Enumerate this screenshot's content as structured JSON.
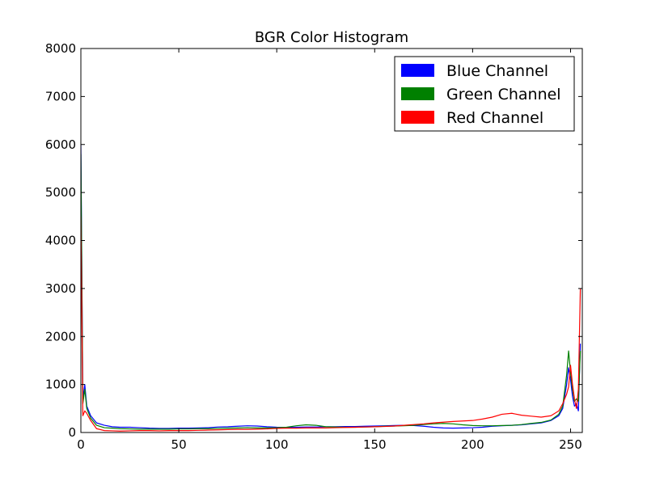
{
  "chart_data": {
    "type": "line",
    "title": "BGR Color Histogram",
    "xlabel": "",
    "ylabel": "",
    "xlim": [
      0,
      256
    ],
    "ylim": [
      0,
      8000
    ],
    "xticks": [
      0,
      50,
      100,
      150,
      200,
      250
    ],
    "yticks": [
      0,
      1000,
      2000,
      3000,
      4000,
      5000,
      6000,
      7000,
      8000
    ],
    "grid": false,
    "legend_position": "top-right",
    "series": [
      {
        "name": "Blue Channel",
        "color": "#0000ff",
        "points": [
          [
            0,
            6000
          ],
          [
            1,
            700
          ],
          [
            2,
            1000
          ],
          [
            3,
            550
          ],
          [
            5,
            350
          ],
          [
            8,
            200
          ],
          [
            12,
            150
          ],
          [
            16,
            120
          ],
          [
            20,
            110
          ],
          [
            25,
            110
          ],
          [
            30,
            100
          ],
          [
            35,
            90
          ],
          [
            40,
            85
          ],
          [
            45,
            85
          ],
          [
            50,
            90
          ],
          [
            55,
            90
          ],
          [
            60,
            95
          ],
          [
            65,
            100
          ],
          [
            70,
            115
          ],
          [
            75,
            120
          ],
          [
            80,
            130
          ],
          [
            85,
            140
          ],
          [
            90,
            135
          ],
          [
            95,
            120
          ],
          [
            100,
            110
          ],
          [
            105,
            105
          ],
          [
            110,
            110
          ],
          [
            115,
            115
          ],
          [
            120,
            115
          ],
          [
            125,
            120
          ],
          [
            130,
            120
          ],
          [
            135,
            125
          ],
          [
            140,
            125
          ],
          [
            145,
            130
          ],
          [
            150,
            135
          ],
          [
            155,
            140
          ],
          [
            160,
            145
          ],
          [
            165,
            150
          ],
          [
            170,
            145
          ],
          [
            175,
            130
          ],
          [
            180,
            110
          ],
          [
            185,
            95
          ],
          [
            190,
            90
          ],
          [
            195,
            95
          ],
          [
            200,
            100
          ],
          [
            205,
            110
          ],
          [
            210,
            130
          ],
          [
            215,
            140
          ],
          [
            220,
            150
          ],
          [
            225,
            160
          ],
          [
            230,
            180
          ],
          [
            235,
            200
          ],
          [
            240,
            250
          ],
          [
            244,
            350
          ],
          [
            246,
            500
          ],
          [
            248,
            1000
          ],
          [
            249,
            1350
          ],
          [
            250,
            1100
          ],
          [
            251,
            750
          ],
          [
            252,
            550
          ],
          [
            253,
            600
          ],
          [
            254,
            450
          ],
          [
            255,
            1850
          ]
        ]
      },
      {
        "name": "Green Channel",
        "color": "#008000",
        "points": [
          [
            0,
            5800
          ],
          [
            1,
            600
          ],
          [
            2,
            900
          ],
          [
            3,
            500
          ],
          [
            5,
            300
          ],
          [
            8,
            150
          ],
          [
            12,
            100
          ],
          [
            16,
            90
          ],
          [
            20,
            80
          ],
          [
            25,
            75
          ],
          [
            30,
            70
          ],
          [
            35,
            70
          ],
          [
            40,
            70
          ],
          [
            45,
            70
          ],
          [
            50,
            75
          ],
          [
            55,
            75
          ],
          [
            60,
            80
          ],
          [
            65,
            80
          ],
          [
            70,
            85
          ],
          [
            75,
            90
          ],
          [
            80,
            95
          ],
          [
            85,
            100
          ],
          [
            90,
            95
          ],
          [
            95,
            95
          ],
          [
            100,
            100
          ],
          [
            105,
            110
          ],
          [
            110,
            140
          ],
          [
            115,
            160
          ],
          [
            120,
            150
          ],
          [
            125,
            120
          ],
          [
            130,
            115
          ],
          [
            135,
            110
          ],
          [
            140,
            110
          ],
          [
            145,
            115
          ],
          [
            150,
            120
          ],
          [
            155,
            130
          ],
          [
            160,
            135
          ],
          [
            165,
            140
          ],
          [
            170,
            150
          ],
          [
            175,
            165
          ],
          [
            180,
            180
          ],
          [
            185,
            190
          ],
          [
            190,
            180
          ],
          [
            195,
            160
          ],
          [
            200,
            145
          ],
          [
            205,
            140
          ],
          [
            210,
            140
          ],
          [
            215,
            145
          ],
          [
            220,
            150
          ],
          [
            225,
            165
          ],
          [
            230,
            190
          ],
          [
            235,
            210
          ],
          [
            240,
            260
          ],
          [
            244,
            380
          ],
          [
            246,
            550
          ],
          [
            248,
            1200
          ],
          [
            249,
            1700
          ],
          [
            250,
            1250
          ],
          [
            251,
            900
          ],
          [
            252,
            650
          ],
          [
            253,
            700
          ],
          [
            254,
            650
          ],
          [
            255,
            1700
          ]
        ]
      },
      {
        "name": "Red Channel",
        "color": "#ff0000",
        "points": [
          [
            0,
            4500
          ],
          [
            1,
            350
          ],
          [
            2,
            450
          ],
          [
            3,
            400
          ],
          [
            5,
            250
          ],
          [
            8,
            80
          ],
          [
            12,
            40
          ],
          [
            16,
            35
          ],
          [
            20,
            30
          ],
          [
            25,
            35
          ],
          [
            30,
            40
          ],
          [
            35,
            40
          ],
          [
            40,
            35
          ],
          [
            45,
            40
          ],
          [
            50,
            40
          ],
          [
            55,
            40
          ],
          [
            60,
            45
          ],
          [
            65,
            50
          ],
          [
            70,
            55
          ],
          [
            75,
            60
          ],
          [
            80,
            65
          ],
          [
            85,
            65
          ],
          [
            90,
            70
          ],
          [
            95,
            75
          ],
          [
            100,
            85
          ],
          [
            105,
            90
          ],
          [
            110,
            90
          ],
          [
            115,
            95
          ],
          [
            120,
            95
          ],
          [
            125,
            95
          ],
          [
            130,
            100
          ],
          [
            135,
            105
          ],
          [
            140,
            110
          ],
          [
            145,
            115
          ],
          [
            150,
            120
          ],
          [
            155,
            125
          ],
          [
            160,
            135
          ],
          [
            165,
            150
          ],
          [
            170,
            165
          ],
          [
            175,
            180
          ],
          [
            180,
            200
          ],
          [
            185,
            215
          ],
          [
            190,
            230
          ],
          [
            195,
            240
          ],
          [
            200,
            250
          ],
          [
            205,
            280
          ],
          [
            210,
            320
          ],
          [
            215,
            380
          ],
          [
            220,
            400
          ],
          [
            225,
            360
          ],
          [
            230,
            340
          ],
          [
            235,
            320
          ],
          [
            240,
            350
          ],
          [
            244,
            450
          ],
          [
            246,
            600
          ],
          [
            248,
            800
          ],
          [
            249,
            950
          ],
          [
            250,
            1400
          ],
          [
            251,
            1000
          ],
          [
            252,
            700
          ],
          [
            253,
            500
          ],
          [
            254,
            900
          ],
          [
            255,
            3000
          ]
        ]
      }
    ]
  }
}
